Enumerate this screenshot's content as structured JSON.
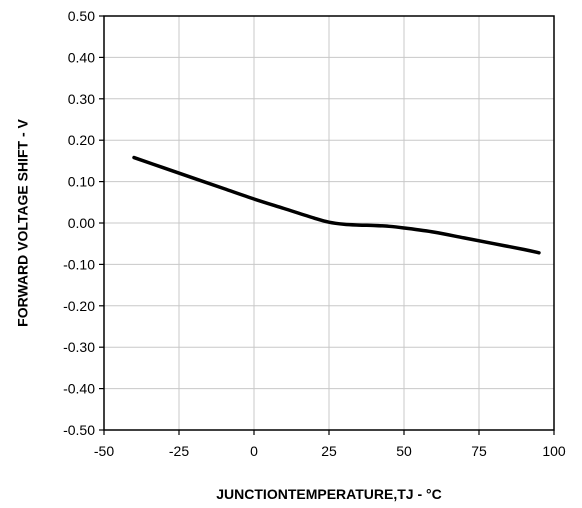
{
  "chart_data": {
    "type": "line",
    "xlabel": "JUNCTIONTEMPERATURE,TJ - °C",
    "ylabel": "FORWARD VOLTAGE SHIFT - V",
    "xlim": [
      -50,
      100
    ],
    "ylim": [
      -0.5,
      0.5
    ],
    "x_ticks": [
      -50,
      -25,
      0,
      25,
      50,
      75,
      100
    ],
    "x_tick_labels": [
      "-50",
      "-25",
      "0",
      "25",
      "50",
      "75",
      "100"
    ],
    "y_ticks": [
      0.5,
      0.4,
      0.3,
      0.2,
      0.1,
      0.0,
      -0.1,
      -0.2,
      -0.3,
      -0.4,
      -0.5
    ],
    "y_tick_labels": [
      "0.50",
      "0.40",
      "0.30",
      "0.20",
      "0.10",
      "0.00",
      "-0.10",
      "-0.20",
      "-0.30",
      "-0.40",
      "-0.50"
    ],
    "grid": true,
    "legend": "none",
    "series": [
      {
        "x": [
          -40,
          -30,
          -20,
          -10,
          0,
          10,
          20,
          25,
          30,
          35,
          40,
          45,
          50,
          60,
          70,
          80,
          90,
          95
        ],
        "y": [
          0.158,
          0.133,
          0.108,
          0.083,
          0.058,
          0.035,
          0.012,
          0.002,
          -0.003,
          -0.005,
          -0.006,
          -0.008,
          -0.012,
          -0.022,
          -0.036,
          -0.05,
          -0.064,
          -0.072
        ],
        "color": "#000000"
      }
    ]
  }
}
